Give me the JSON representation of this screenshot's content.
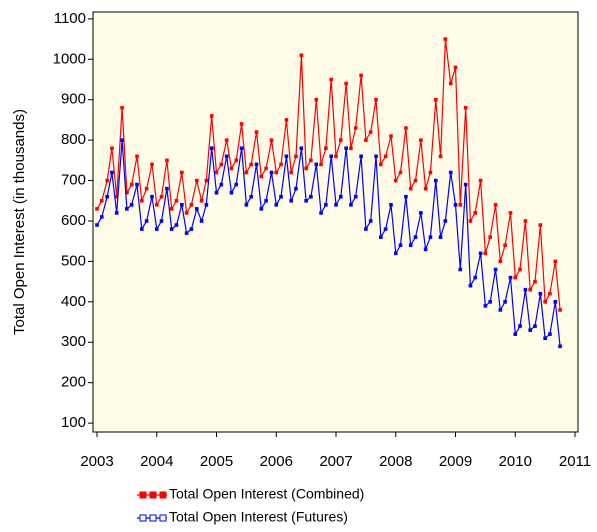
{
  "chart_data": {
    "type": "line",
    "y_label": "Total Open Interest (in thousands)",
    "x": [
      2003,
      2003.08,
      2003.17,
      2003.25,
      2003.33,
      2003.42,
      2003.5,
      2003.58,
      2003.67,
      2003.75,
      2003.83,
      2003.92,
      2004,
      2004.08,
      2004.17,
      2004.25,
      2004.33,
      2004.42,
      2004.5,
      2004.58,
      2004.67,
      2004.75,
      2004.83,
      2004.92,
      2005,
      2005.08,
      2005.17,
      2005.25,
      2005.33,
      2005.42,
      2005.5,
      2005.58,
      2005.67,
      2005.75,
      2005.83,
      2005.92,
      2006,
      2006.08,
      2006.17,
      2006.25,
      2006.33,
      2006.42,
      2006.5,
      2006.58,
      2006.67,
      2006.75,
      2006.83,
      2006.92,
      2007,
      2007.08,
      2007.17,
      2007.25,
      2007.33,
      2007.42,
      2007.5,
      2007.58,
      2007.67,
      2007.75,
      2007.83,
      2007.92,
      2008,
      2008.08,
      2008.17,
      2008.25,
      2008.33,
      2008.42,
      2008.5,
      2008.58,
      2008.67,
      2008.75,
      2008.83,
      2008.92,
      2009,
      2009.08,
      2009.17,
      2009.25,
      2009.33,
      2009.42,
      2009.5,
      2009.58,
      2009.67,
      2009.75,
      2009.83,
      2009.92,
      2010,
      2010.08,
      2010.17,
      2010.25,
      2010.33,
      2010.42,
      2010.5,
      2010.58,
      2010.67,
      2010.75
    ],
    "series": [
      {
        "name": "Total Open Interest (Combined)",
        "color": "#ff0000",
        "values": [
          630,
          650,
          700,
          780,
          660,
          880,
          670,
          690,
          760,
          650,
          680,
          740,
          640,
          660,
          750,
          630,
          650,
          720,
          620,
          640,
          700,
          650,
          700,
          860,
          720,
          740,
          800,
          730,
          750,
          840,
          720,
          740,
          820,
          710,
          730,
          800,
          720,
          740,
          850,
          720,
          760,
          1010,
          730,
          750,
          900,
          740,
          780,
          950,
          760,
          800,
          940,
          780,
          830,
          960,
          800,
          820,
          900,
          740,
          760,
          810,
          700,
          720,
          830,
          680,
          700,
          800,
          680,
          720,
          900,
          760,
          1050,
          940,
          980,
          640,
          880,
          600,
          620,
          700,
          520,
          560,
          640,
          500,
          540,
          620,
          460,
          480,
          600,
          430,
          450,
          590,
          400,
          420,
          500,
          380
        ]
      },
      {
        "name": "Total Open Interest (Futures)",
        "color": "#0000ff",
        "values": [
          590,
          610,
          660,
          720,
          620,
          800,
          630,
          640,
          690,
          580,
          600,
          660,
          580,
          600,
          680,
          580,
          590,
          640,
          570,
          580,
          630,
          600,
          640,
          780,
          670,
          690,
          760,
          670,
          690,
          780,
          640,
          660,
          740,
          630,
          650,
          720,
          640,
          660,
          760,
          650,
          680,
          780,
          650,
          660,
          740,
          620,
          640,
          760,
          640,
          660,
          780,
          640,
          660,
          760,
          580,
          600,
          760,
          560,
          580,
          640,
          520,
          540,
          660,
          540,
          560,
          620,
          530,
          560,
          700,
          560,
          600,
          720,
          640,
          480,
          690,
          440,
          460,
          520,
          390,
          400,
          480,
          380,
          400,
          460,
          320,
          340,
          430,
          330,
          340,
          420,
          310,
          320,
          400,
          290
        ]
      }
    ],
    "xlim": [
      2002.933,
      2011.05
    ],
    "xticks": [
      2003,
      2004,
      2005,
      2006,
      2007,
      2008,
      2009,
      2010,
      2011
    ],
    "ylim": [
      78,
      1117
    ],
    "yticks": [
      100,
      200,
      300,
      400,
      500,
      600,
      700,
      800,
      900,
      1000,
      1100
    ],
    "background": "#fffde8"
  }
}
